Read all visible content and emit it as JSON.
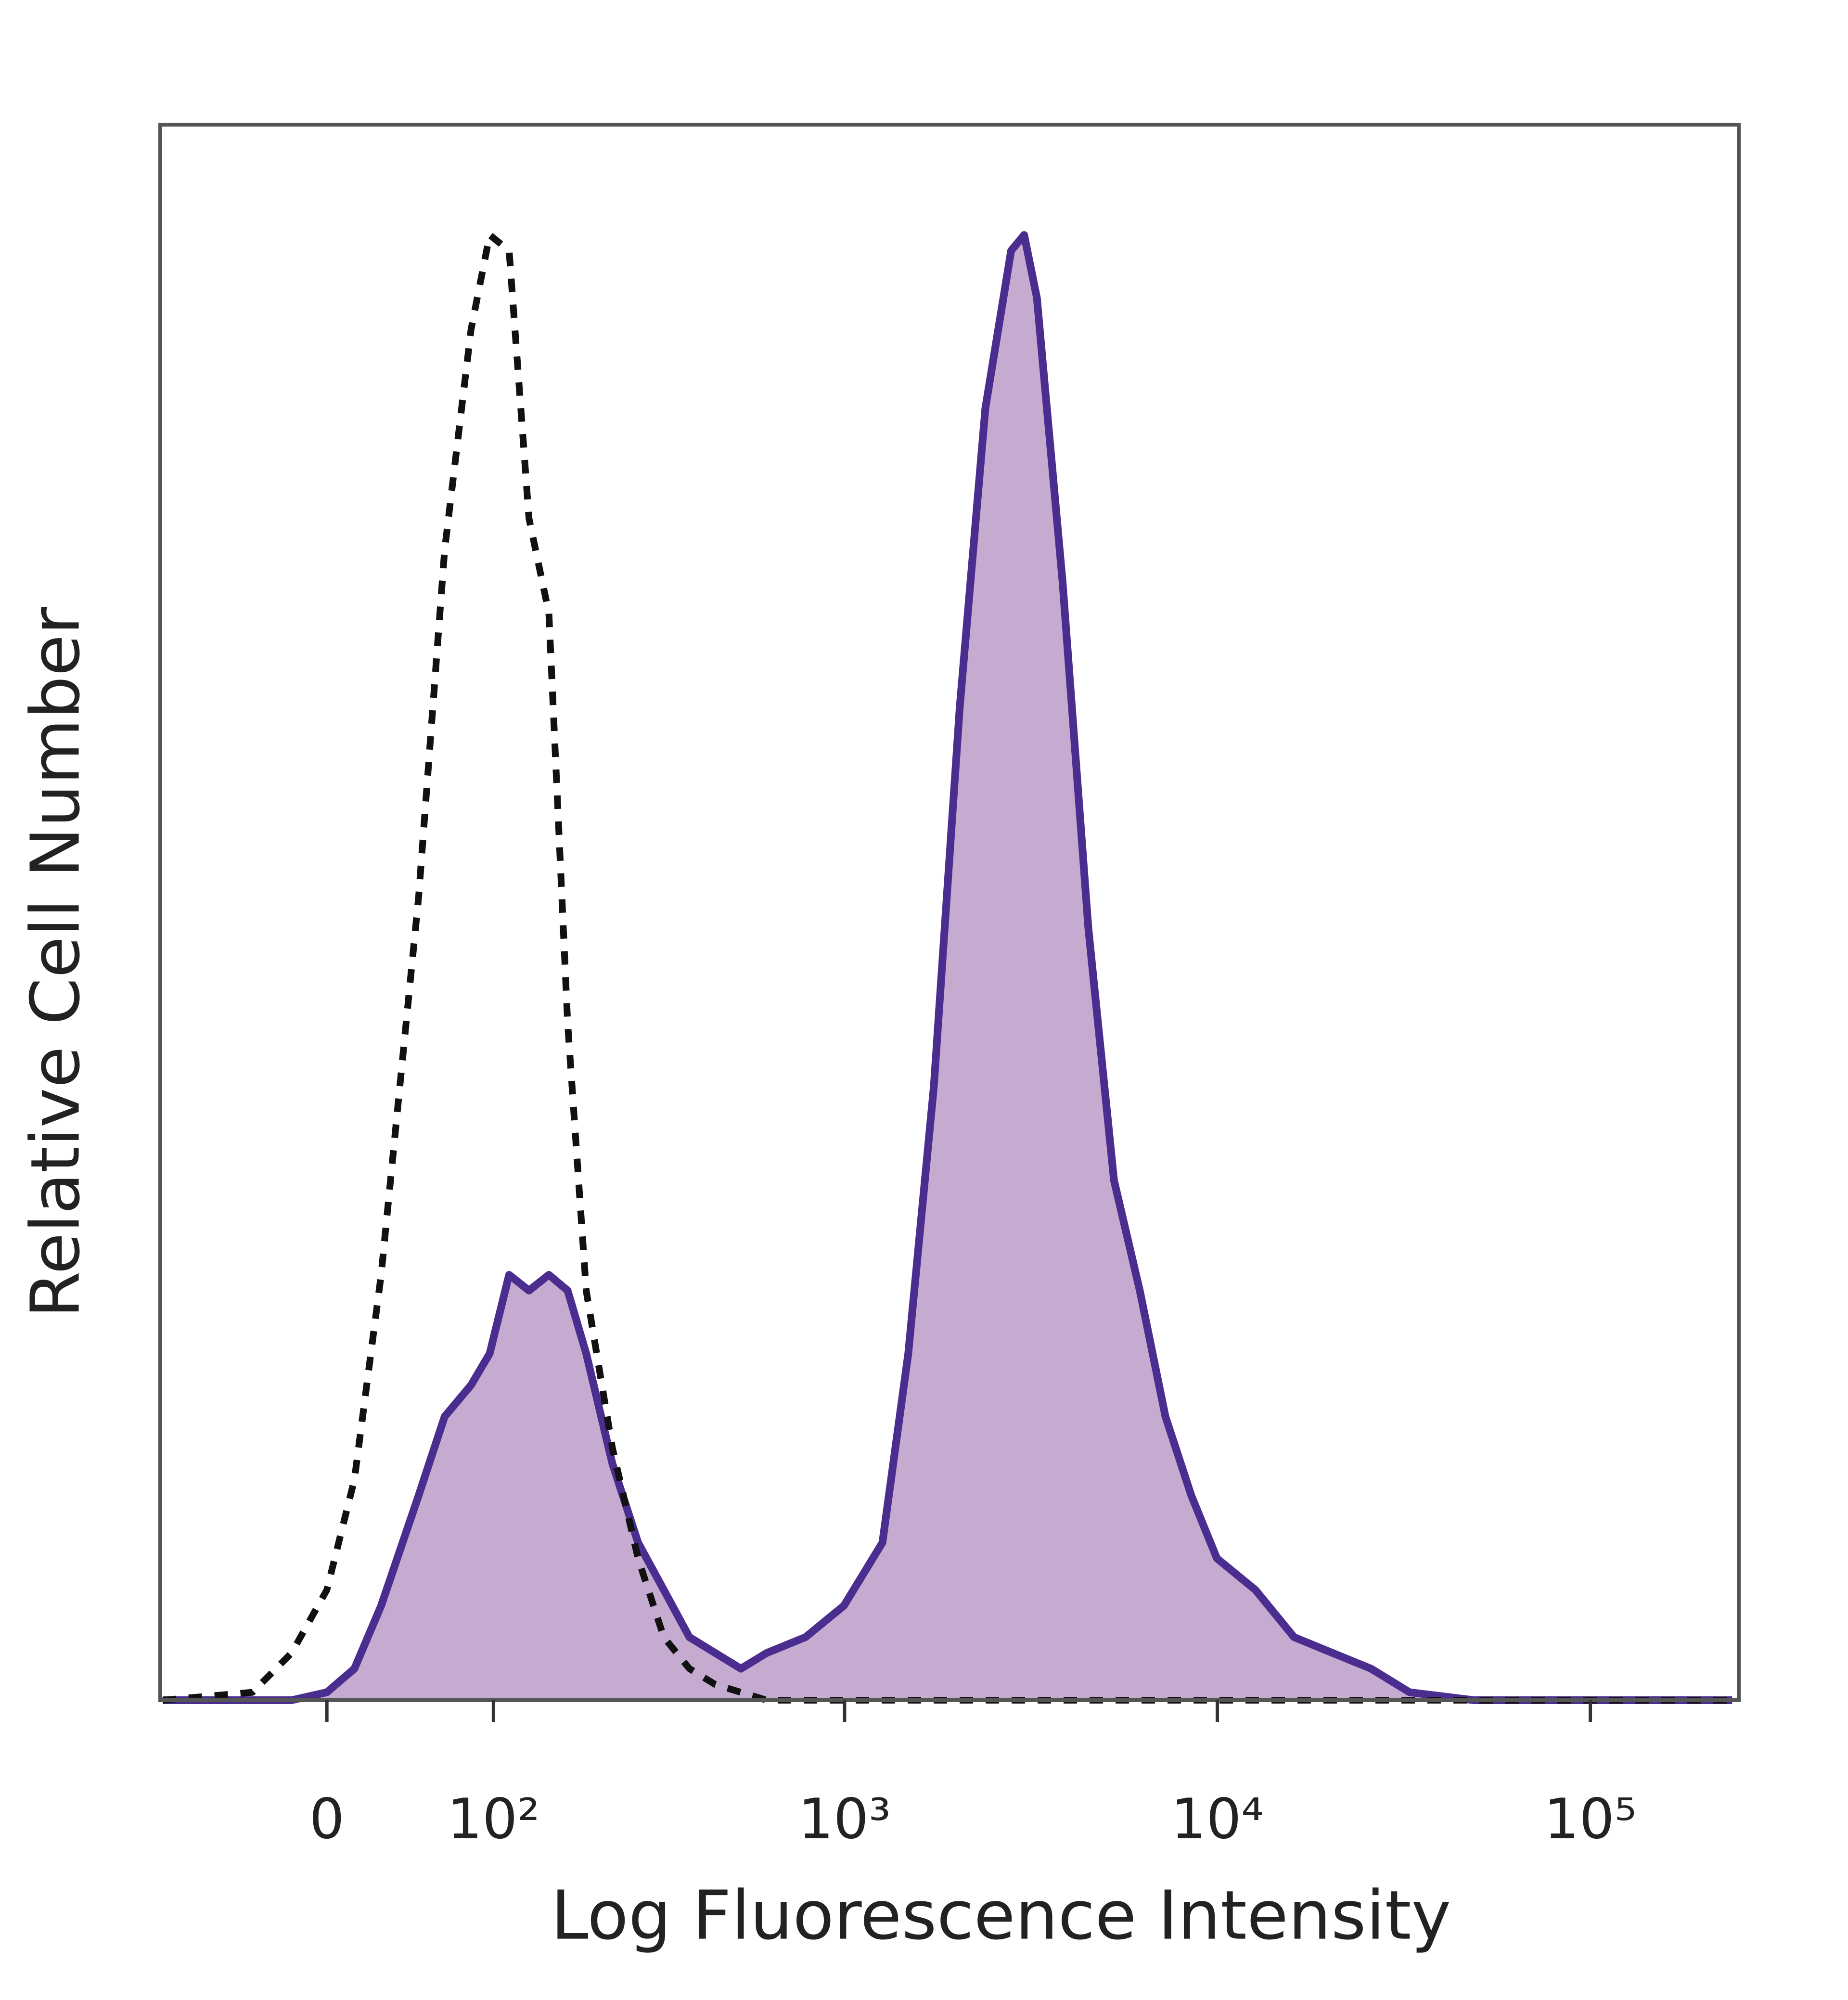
{
  "chart_data": {
    "type": "histogram-overlay",
    "xlabel": "Log Fluorescence Intensity",
    "ylabel": "Relative Cell Number",
    "x_scale": "biexponential",
    "x": [
      -98,
      -39,
      -18,
      0,
      14,
      28,
      49,
      65,
      83,
      97,
      113,
      131,
      151,
      172,
      195,
      232,
      274,
      323,
      380,
      447,
      525,
      617,
      785,
      996,
      1264,
      1483,
      1738,
      2038,
      2388,
      2800,
      3034,
      3283,
      3846,
      4510,
      5285,
      6196,
      7261,
      8514,
      9975,
      12650,
      16060,
      20360,
      25830,
      32780,
      48720,
      72450,
      107800,
      240000
    ],
    "series": [
      {
        "color": "#4b2d8f",
        "fill": "#c6abd0",
        "style": "solid",
        "values": [
          0,
          0,
          0,
          0.5,
          2,
          6,
          13,
          18,
          20,
          22,
          27,
          26,
          27,
          26,
          22,
          15,
          10,
          7,
          4,
          3,
          2,
          3,
          4,
          6,
          10,
          22,
          39,
          63,
          82,
          92,
          93,
          89,
          71,
          49,
          33,
          26,
          18,
          13,
          9,
          7,
          4,
          3,
          2,
          0.5,
          0,
          0,
          0,
          0
        ]
      },
      {
        "color": "#111111",
        "style": "dashed",
        "values": [
          0,
          0.5,
          3,
          7,
          14,
          27,
          51,
          73,
          87,
          93,
          92,
          75,
          69,
          43,
          26,
          16,
          9,
          4,
          2,
          1,
          0.5,
          0,
          0,
          0,
          0,
          0,
          0,
          0,
          0,
          0,
          0,
          0,
          0,
          0,
          0,
          0,
          0,
          0,
          0,
          0,
          0,
          0,
          0,
          0,
          0,
          0,
          0,
          0
        ]
      }
    ],
    "xlim": [
      -100,
      250000
    ],
    "ylim": [
      0,
      100
    ],
    "xticks": [
      0,
      {
        "value": 100,
        "label": "10²"
      },
      {
        "value": 1000,
        "label": "10³"
      },
      {
        "value": 10000,
        "label": "10⁴"
      },
      {
        "value": 100000,
        "label": "10⁵"
      }
    ],
    "grid": false
  }
}
